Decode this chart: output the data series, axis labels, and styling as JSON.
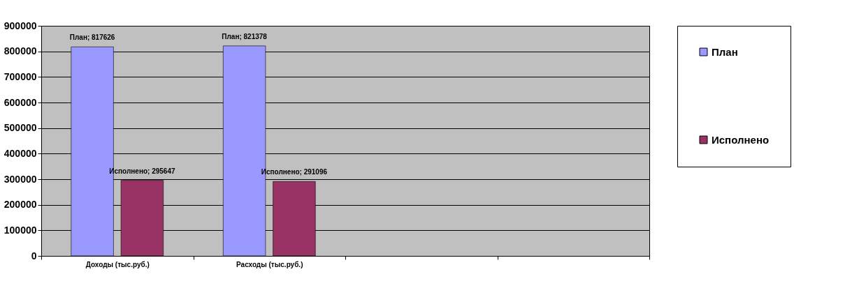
{
  "chart_data": {
    "type": "bar",
    "categories": [
      "Доходы (тыс.руб.)",
      "Расходы (тыс.руб.)",
      null,
      null
    ],
    "series": [
      {
        "name": "План",
        "color": "#9999ff",
        "values": [
          817626,
          821378,
          null,
          null
        ],
        "value_labels": [
          "План; 817626",
          "План; 821378",
          null,
          null
        ]
      },
      {
        "name": "Исполнено",
        "color": "#993366",
        "values": [
          295647,
          291096,
          null,
          null
        ],
        "value_labels": [
          "Исполнено; 295647",
          "Исполнено; 291096",
          null,
          null
        ]
      }
    ],
    "ylim": [
      0,
      900000
    ],
    "yticks": [
      0,
      100000,
      200000,
      300000,
      400000,
      500000,
      600000,
      700000,
      800000,
      900000
    ],
    "grid": "y",
    "legend": "right"
  }
}
